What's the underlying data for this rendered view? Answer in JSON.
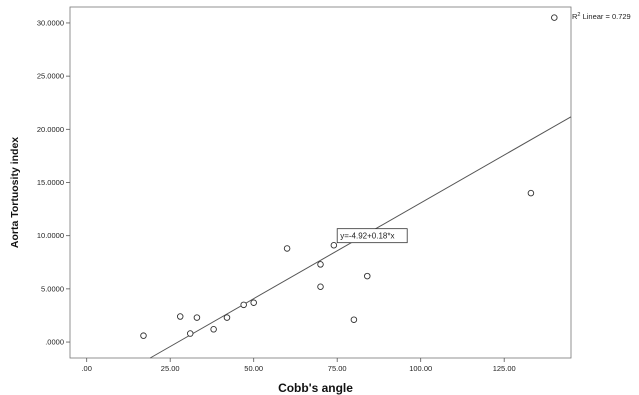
{
  "chart_data": {
    "type": "scatter",
    "title": "",
    "xlabel": "Cobb's angle",
    "ylabel": "Aorta Tortuosity index",
    "xlim": [
      -5,
      145
    ],
    "ylim": [
      -1.5,
      31.5
    ],
    "x_ticks": [
      0,
      25,
      50,
      75,
      100,
      125
    ],
    "x_tick_labels": [
      ".00",
      "25.00",
      "50.00",
      "75.00",
      "100.00",
      "125.00"
    ],
    "y_ticks": [
      0,
      5,
      10,
      15,
      20,
      25,
      30
    ],
    "y_tick_labels": [
      ".0000",
      "5.0000",
      "10.0000",
      "15.0000",
      "20.0000",
      "25.0000",
      "30.0000"
    ],
    "grid": false,
    "points": [
      {
        "x": 17,
        "y": 0.6
      },
      {
        "x": 28,
        "y": 2.4
      },
      {
        "x": 31,
        "y": 0.8
      },
      {
        "x": 33,
        "y": 2.3
      },
      {
        "x": 38,
        "y": 1.2
      },
      {
        "x": 42,
        "y": 2.3
      },
      {
        "x": 47,
        "y": 3.5
      },
      {
        "x": 50,
        "y": 3.7
      },
      {
        "x": 60,
        "y": 8.8
      },
      {
        "x": 70,
        "y": 7.3
      },
      {
        "x": 70,
        "y": 5.2
      },
      {
        "x": 74,
        "y": 9.1
      },
      {
        "x": 80,
        "y": 2.1
      },
      {
        "x": 84,
        "y": 6.2
      },
      {
        "x": 133,
        "y": 14.0
      },
      {
        "x": 140,
        "y": 30.5
      }
    ],
    "fit_line": {
      "type": "linear",
      "intercept": -4.92,
      "slope": 0.18,
      "equation_label": "y=-4.92+0.18*x",
      "equation_anchor": {
        "x": 75,
        "y": 10
      }
    },
    "r2_label_prefix": "R",
    "r2_label_suffix": " Linear = 0.729",
    "colors": {
      "axis": "#555555",
      "points": "#333333",
      "line": "#555555",
      "text": "#222222"
    }
  }
}
